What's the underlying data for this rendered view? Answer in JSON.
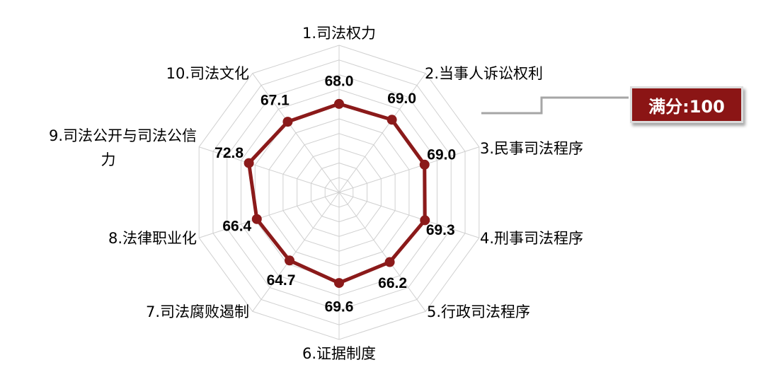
{
  "callout": {
    "label": "满分:100"
  },
  "chart_data": {
    "type": "radar",
    "categories": [
      "1.司法权力",
      "2.当事人诉讼权利",
      "3.民事司法程序",
      "4.刑事司法程序",
      "5.行政司法程序",
      "6.证据制度",
      "7.司法腐败遏制",
      "8.法律职业化",
      "9.司法公开与司法公信力",
      "10.司法文化"
    ],
    "category_label_lines": [
      [
        "1.司法权力"
      ],
      [
        "2.当事人诉讼权利"
      ],
      [
        "3.民事司法程序"
      ],
      [
        "4.刑事司法程序"
      ],
      [
        "5.行政司法程序"
      ],
      [
        "6.证据制度"
      ],
      [
        "7.司法腐败遏制"
      ],
      [
        "8.法律职业化"
      ],
      [
        "9.司法公开与司法公信",
        "力"
      ],
      [
        "10.司法文化"
      ]
    ],
    "values": [
      68.0,
      69.0,
      69.0,
      69.3,
      66.2,
      69.6,
      64.7,
      66.4,
      72.8,
      67.1
    ],
    "value_labels": [
      "68.0",
      "69.0",
      "69.0",
      "69.3",
      "66.2",
      "69.6",
      "64.7",
      "66.4",
      "72.8",
      "67.1"
    ],
    "rmax": 100,
    "grid_levels": 10,
    "series_color": "#8b1a1a",
    "grid_color": "#d0d0d0"
  }
}
